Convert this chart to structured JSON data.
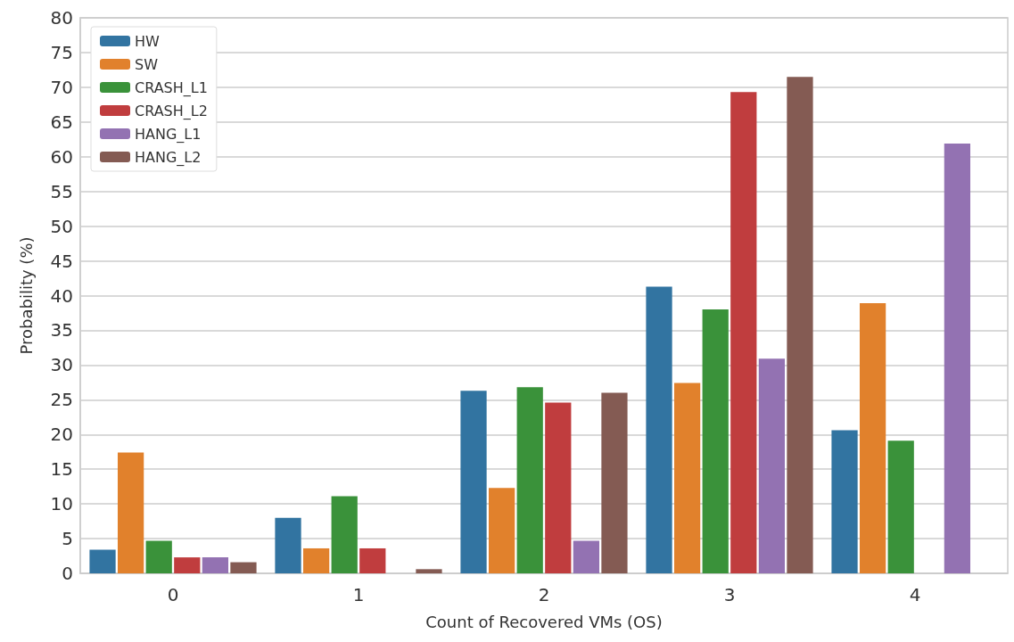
{
  "chart_data": {
    "type": "bar",
    "xlabel": "Count of Recovered VMs (OS)",
    "ylabel": "Probability (%)",
    "categories": [
      "0",
      "1",
      "2",
      "3",
      "4"
    ],
    "series": [
      {
        "name": "HW",
        "color": "#3274a1",
        "values": [
          3.4,
          8.0,
          26.3,
          41.3,
          20.6
        ]
      },
      {
        "name": "SW",
        "color": "#e1812c",
        "values": [
          17.4,
          3.6,
          12.3,
          27.4,
          38.9
        ]
      },
      {
        "name": "CRASH_L1",
        "color": "#3a923a",
        "values": [
          4.7,
          11.1,
          26.8,
          38.0,
          19.1
        ]
      },
      {
        "name": "CRASH_L2",
        "color": "#c03d3e",
        "values": [
          2.3,
          3.6,
          24.6,
          69.3,
          0
        ]
      },
      {
        "name": "HANG_L1",
        "color": "#9372b2",
        "values": [
          2.3,
          0,
          4.7,
          30.9,
          61.9
        ]
      },
      {
        "name": "HANG_L2",
        "color": "#845b53",
        "values": [
          1.6,
          0.6,
          26.0,
          71.5,
          0
        ]
      }
    ],
    "ylim": [
      0,
      80
    ],
    "yticks": [
      0,
      5,
      10,
      15,
      20,
      25,
      30,
      35,
      40,
      45,
      50,
      55,
      60,
      65,
      70,
      75,
      80
    ],
    "grid": "y",
    "legend": "top left"
  }
}
